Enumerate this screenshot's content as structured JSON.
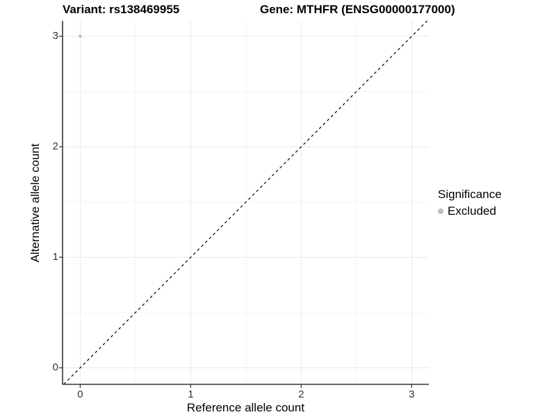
{
  "chart_data": {
    "type": "scatter",
    "title_left": "Variant: rs138469955",
    "title_right": "Gene: MTHFR (ENSG00000177000)",
    "xlabel": "Reference allele count",
    "ylabel": "Alternative allele count",
    "xlim": [
      -0.16,
      3.155
    ],
    "ylim": [
      -0.15,
      3.14
    ],
    "xticks": [
      {
        "value": 0,
        "label": "0"
      },
      {
        "value": 1,
        "label": "1"
      },
      {
        "value": 2,
        "label": "2"
      },
      {
        "value": 3,
        "label": "3"
      }
    ],
    "yticks": [
      {
        "value": 0,
        "label": "0"
      },
      {
        "value": 1,
        "label": "1"
      },
      {
        "value": 2,
        "label": "2"
      },
      {
        "value": 3,
        "label": "3"
      }
    ],
    "grid": {
      "major_x": [
        0,
        1,
        2,
        3
      ],
      "major_y": [
        0,
        1,
        2,
        3
      ],
      "minor_x": [
        0.5,
        1.5,
        2.5
      ],
      "minor_y": [
        0.5,
        1.5,
        2.5
      ]
    },
    "points": [
      {
        "x": 0,
        "y": 3,
        "series": "Excluded"
      }
    ],
    "reference_line": {
      "kind": "identity",
      "style": "dashed",
      "color": "#000000"
    },
    "legend": {
      "title": "Significance",
      "position": "right",
      "entries": [
        {
          "label": "Excluded",
          "color": "#bebebe"
        }
      ]
    },
    "colors": {
      "point": "#c0c0c0",
      "grid_major": "#e8e8e8",
      "grid_minor": "#f4f4f4",
      "axis_line": "#333333",
      "tick_mark": "#333333",
      "tick_label": "#333333"
    }
  }
}
